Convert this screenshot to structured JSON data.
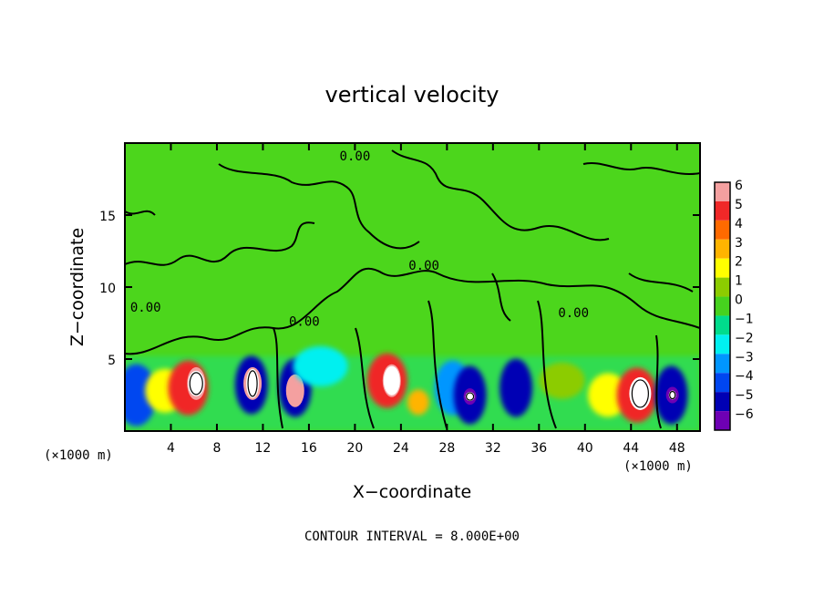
{
  "chart_data": {
    "type": "heatmap",
    "title": "vertical velocity",
    "xlabel": "X−coordinate",
    "ylabel": "Z−coordinate",
    "x_unit": "(×1000 m)",
    "x_unit_right": "(×1000 m)",
    "footer": "CONTOUR INTERVAL = 8.000E+00",
    "xlim": [
      0,
      50
    ],
    "ylim": [
      0,
      20
    ],
    "x_ticks": [
      4,
      8,
      12,
      16,
      20,
      24,
      28,
      32,
      36,
      40,
      44,
      48
    ],
    "x_tick_labels": [
      "4",
      "8",
      "12",
      "16",
      "20",
      "24",
      "28",
      "32",
      "36",
      "40",
      "44",
      "48"
    ],
    "y_ticks": [
      5,
      10,
      15
    ],
    "y_tick_labels": [
      "5",
      "10",
      "15"
    ],
    "contour_label": "0.00",
    "colorbar": {
      "levels": [
        6,
        5,
        4,
        3,
        2,
        1,
        0,
        -1,
        -2,
        -3,
        -4,
        -5,
        -6
      ],
      "level_labels": [
        "6",
        "5",
        "4",
        "3",
        "2",
        "1",
        "0",
        "−1",
        "−2",
        "−3",
        "−4",
        "−5",
        "−6"
      ],
      "colors": [
        "#f4a0a0",
        "#f02828",
        "#ff6a00",
        "#ffb400",
        "#ffff00",
        "#8ccc00",
        "#46d21e",
        "#00dc8c",
        "#00f0f0",
        "#0096ff",
        "#0046f0",
        "#0000b4",
        "#6e00b4"
      ]
    },
    "background_color": "#4cd61c",
    "cells": [
      {
        "x": 1,
        "z": 2.5,
        "value": -4
      },
      {
        "x": 3.5,
        "z": 2.8,
        "value": 2
      },
      {
        "x": 5.5,
        "z": 3.0,
        "value": 5
      },
      {
        "x": 6.2,
        "z": 3.3,
        "value": 6
      },
      {
        "x": 11,
        "z": 3.2,
        "value": -5
      },
      {
        "x": 11.1,
        "z": 3.3,
        "value": 6
      },
      {
        "x": 14.8,
        "z": 3.0,
        "value": -5
      },
      {
        "x": 14.8,
        "z": 2.8,
        "value": 6
      },
      {
        "x": 17,
        "z": 4.5,
        "value": -2
      },
      {
        "x": 22.8,
        "z": 3.5,
        "value": 5
      },
      {
        "x": 23.2,
        "z": 3.5,
        "value": 6
      },
      {
        "x": 25.5,
        "z": 2.0,
        "value": 3
      },
      {
        "x": 28.5,
        "z": 3.0,
        "value": -3
      },
      {
        "x": 30,
        "z": 2.5,
        "value": -5
      },
      {
        "x": 30,
        "z": 2.4,
        "value": -6
      },
      {
        "x": 34,
        "z": 3.0,
        "value": -5
      },
      {
        "x": 38,
        "z": 3.5,
        "value": 1
      },
      {
        "x": 42,
        "z": 2.5,
        "value": 2
      },
      {
        "x": 44.5,
        "z": 2.5,
        "value": 5
      },
      {
        "x": 44.8,
        "z": 2.6,
        "value": 6
      },
      {
        "x": 47.5,
        "z": 2.5,
        "value": -5
      },
      {
        "x": 47.6,
        "z": 2.5,
        "value": -6
      }
    ]
  }
}
